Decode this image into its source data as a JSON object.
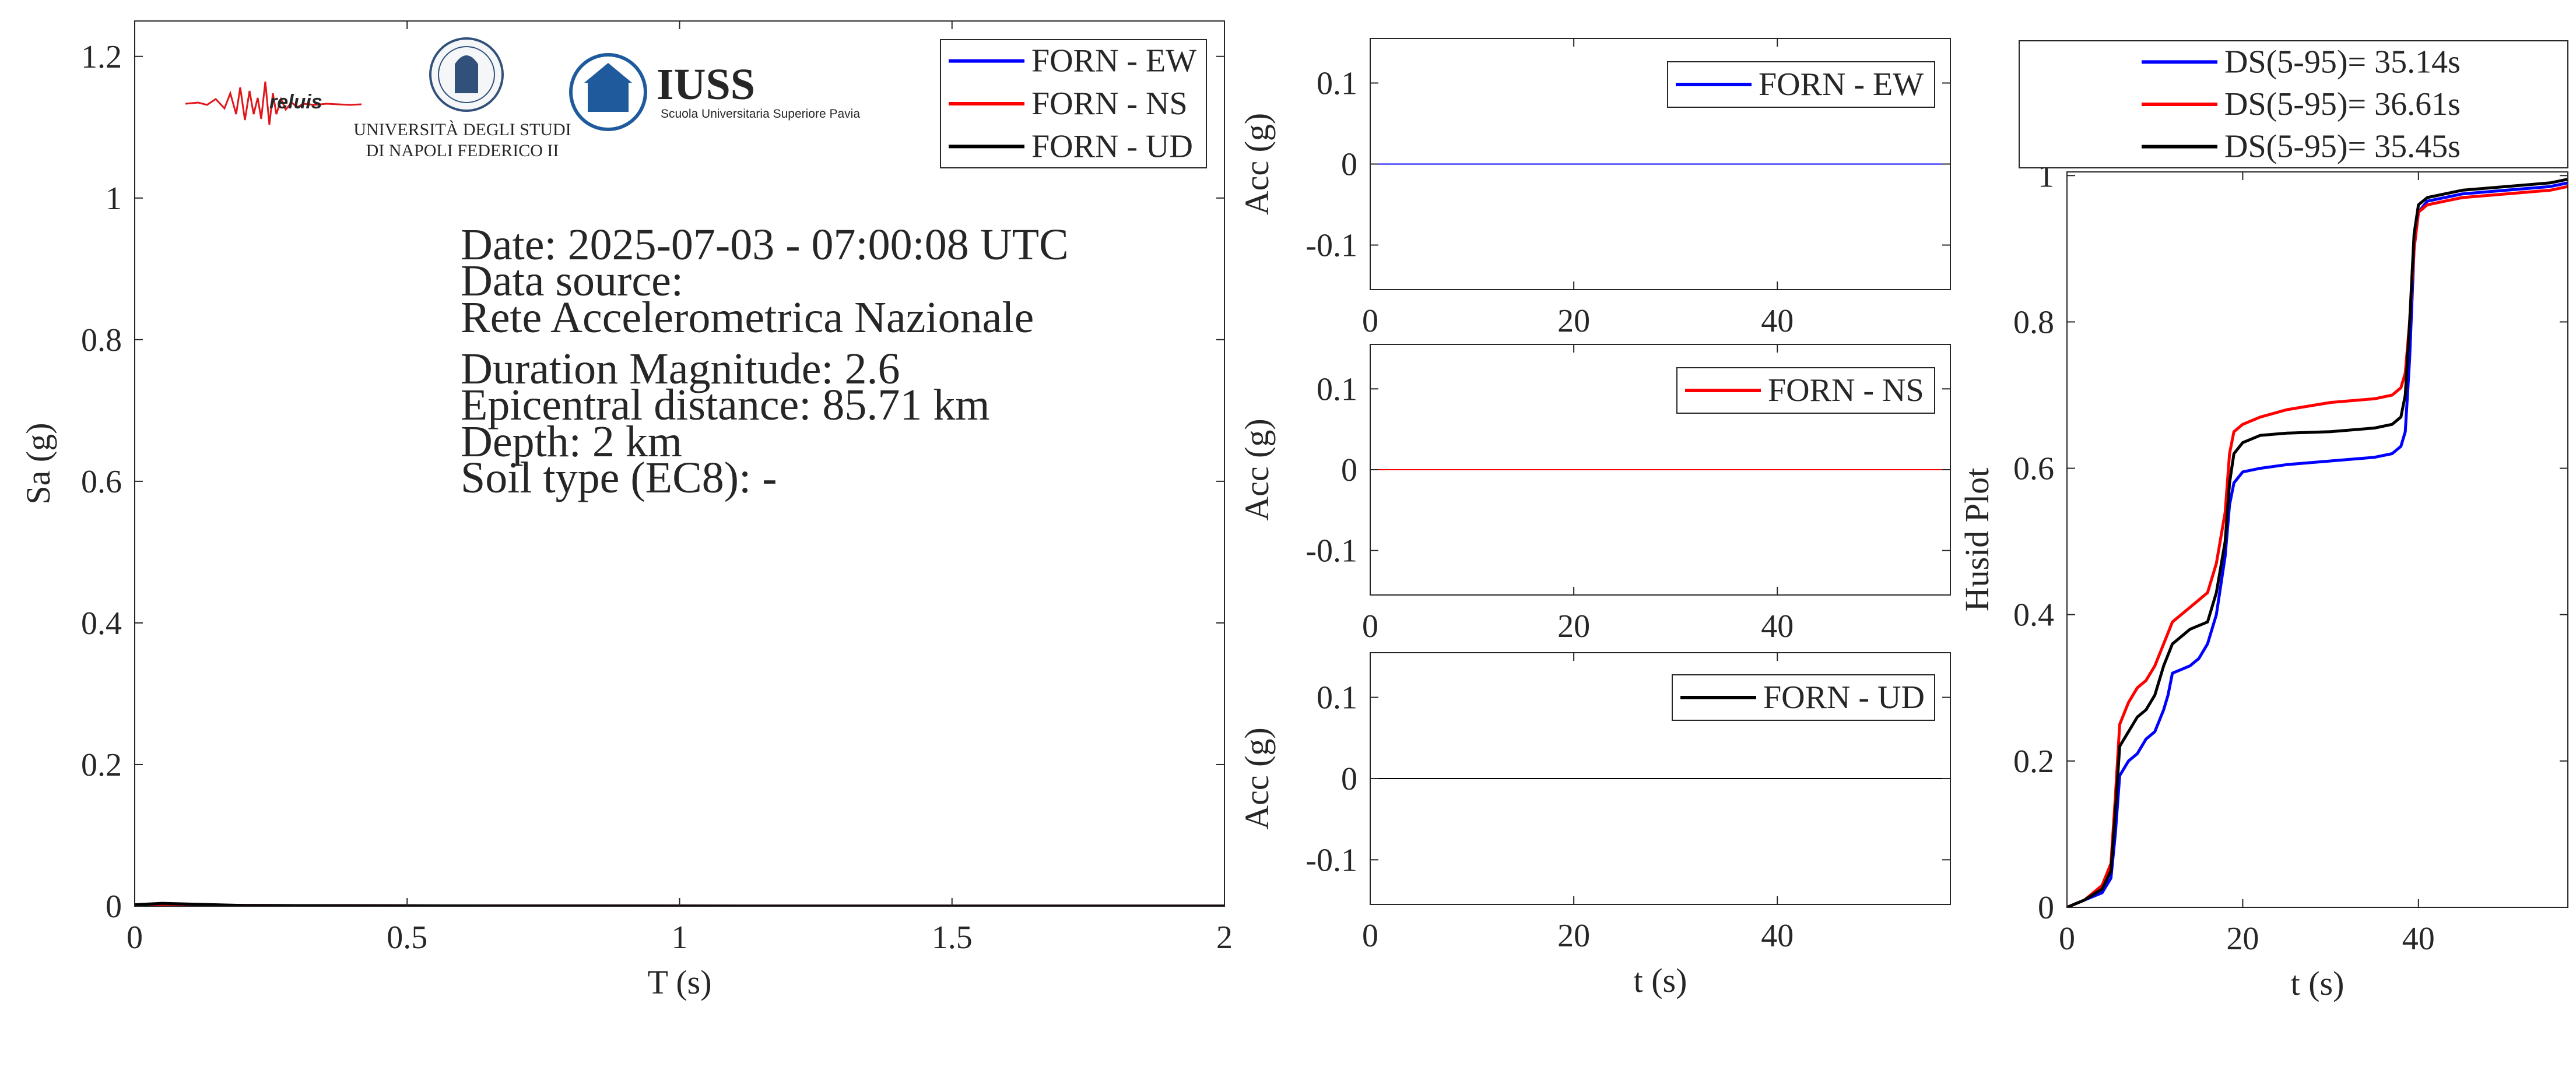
{
  "colors": {
    "ew": "#0000ff",
    "ns": "#ff0000",
    "ud": "#000000",
    "axis": "#262626",
    "logo_blue": "#1f5b9c",
    "logo_red": "#e0161b"
  },
  "logos": {
    "reluis": "reluis",
    "unina_line1": "UNIVERSITÀ DEGLI STUDI",
    "unina_line2": "DI NAPOLI FEDERICO II",
    "iuss_title": "IUSS",
    "iuss_subtitle": "Scuola Universitaria Superiore Pavia"
  },
  "info": {
    "date": "Date: 2025-07-03 - 07:00:08 UTC",
    "source_label": "Data source:",
    "source_name": "Rete Accelerometrica Nazionale",
    "magnitude": "Duration Magnitude: 2.6",
    "distance": "Epicentral distance: 85.71 km",
    "depth": "Depth: 2 km",
    "soil": "Soil type (EC8): -"
  },
  "chart_data": [
    {
      "id": "spectrum",
      "type": "line",
      "xlabel": "T (s)",
      "ylabel": "Sa (g)",
      "xlim": [
        0,
        2
      ],
      "ylim": [
        0,
        1.25
      ],
      "xticks": [
        0,
        0.5,
        1,
        1.5,
        2
      ],
      "yticks": [
        0,
        0.2,
        0.4,
        0.6,
        0.8,
        1,
        1.2
      ],
      "grid": false,
      "legend": "top-right",
      "series": [
        {
          "name": "FORN - EW",
          "color": "#0000ff",
          "x": [
            0,
            0.05,
            0.1,
            0.2,
            0.5,
            1,
            1.5,
            2
          ],
          "y": [
            0.002,
            0.003,
            0.002,
            0.001,
            0.0005,
            0.0002,
            0.0001,
            0.0001
          ]
        },
        {
          "name": "FORN - NS",
          "color": "#ff0000",
          "x": [
            0,
            0.05,
            0.1,
            0.2,
            0.5,
            1,
            1.5,
            2
          ],
          "y": [
            0.002,
            0.003,
            0.002,
            0.001,
            0.0005,
            0.0002,
            0.0001,
            0.0001
          ]
        },
        {
          "name": "FORN - UD",
          "color": "#000000",
          "x": [
            0,
            0.05,
            0.1,
            0.2,
            0.5,
            1,
            1.5,
            2
          ],
          "y": [
            0.002,
            0.004,
            0.003,
            0.001,
            0.0005,
            0.0002,
            0.0001,
            0.0001
          ]
        }
      ]
    },
    {
      "id": "acc_ew",
      "type": "line",
      "xlabel": "",
      "ylabel": "Acc (g)",
      "xlim": [
        0,
        57
      ],
      "ylim": [
        -0.155,
        0.155
      ],
      "xticks": [
        0,
        20,
        40
      ],
      "yticks": [
        -0.1,
        0,
        0.1
      ],
      "ytick_labels": [
        "-0.1",
        "0",
        "0.1"
      ],
      "legend": "top-right",
      "series": [
        {
          "name": "FORN - EW",
          "color": "#0000ff",
          "x": [
            0,
            57
          ],
          "y": [
            0,
            0
          ]
        }
      ]
    },
    {
      "id": "acc_ns",
      "type": "line",
      "xlabel": "",
      "ylabel": "Acc (g)",
      "xlim": [
        0,
        57
      ],
      "ylim": [
        -0.155,
        0.155
      ],
      "xticks": [
        0,
        20,
        40
      ],
      "yticks": [
        -0.1,
        0,
        0.1
      ],
      "ytick_labels": [
        "-0.1",
        "0",
        "0.1"
      ],
      "legend": "top-right",
      "series": [
        {
          "name": "FORN - NS",
          "color": "#ff0000",
          "x": [
            0,
            57
          ],
          "y": [
            0,
            0
          ]
        }
      ]
    },
    {
      "id": "acc_ud",
      "type": "line",
      "xlabel": "t (s)",
      "ylabel": "Acc (g)",
      "xlim": [
        0,
        57
      ],
      "ylim": [
        -0.155,
        0.155
      ],
      "xticks": [
        0,
        20,
        40
      ],
      "yticks": [
        -0.1,
        0,
        0.1
      ],
      "ytick_labels": [
        "-0.1",
        "0",
        "0.1"
      ],
      "legend": "top-right",
      "series": [
        {
          "name": "FORN - UD",
          "color": "#000000",
          "x": [
            0,
            57
          ],
          "y": [
            0,
            0
          ]
        }
      ]
    },
    {
      "id": "husid",
      "type": "line",
      "xlabel": "t (s)",
      "ylabel": "Husid Plot",
      "xlim": [
        0,
        57
      ],
      "ylim": [
        0,
        1.005
      ],
      "xticks": [
        0,
        20,
        40
      ],
      "yticks": [
        0,
        0.2,
        0.4,
        0.6,
        0.8,
        1
      ],
      "legend": "top (outside)",
      "series": [
        {
          "name": "DS(5-95)= 35.14s",
          "color": "#0000ff",
          "x": [
            0,
            2,
            4,
            5,
            5.5,
            6,
            7,
            8,
            9,
            10,
            11,
            11.5,
            12,
            13,
            14,
            15,
            16,
            17,
            18,
            18.5,
            19,
            20,
            22,
            25,
            30,
            35,
            37,
            38,
            38.5,
            39,
            39.5,
            40,
            41,
            43,
            45,
            50,
            55,
            57
          ],
          "y": [
            0,
            0.01,
            0.02,
            0.04,
            0.1,
            0.18,
            0.2,
            0.21,
            0.23,
            0.24,
            0.27,
            0.29,
            0.32,
            0.325,
            0.33,
            0.34,
            0.36,
            0.4,
            0.48,
            0.55,
            0.58,
            0.595,
            0.6,
            0.605,
            0.61,
            0.615,
            0.62,
            0.63,
            0.65,
            0.75,
            0.9,
            0.95,
            0.965,
            0.97,
            0.975,
            0.98,
            0.985,
            0.99
          ]
        },
        {
          "name": "DS(5-95)= 36.61s",
          "color": "#ff0000",
          "x": [
            0,
            2,
            4,
            5,
            5.5,
            6,
            7,
            8,
            9,
            10,
            11,
            12,
            13,
            14,
            15,
            16,
            17,
            18,
            18.5,
            19,
            20,
            22,
            25,
            30,
            35,
            37,
            38,
            38.5,
            39,
            39.5,
            40,
            41,
            43,
            45,
            50,
            55,
            57
          ],
          "y": [
            0,
            0.01,
            0.03,
            0.06,
            0.15,
            0.25,
            0.28,
            0.3,
            0.31,
            0.33,
            0.36,
            0.39,
            0.4,
            0.41,
            0.42,
            0.43,
            0.47,
            0.54,
            0.62,
            0.65,
            0.66,
            0.67,
            0.68,
            0.69,
            0.695,
            0.7,
            0.71,
            0.73,
            0.8,
            0.9,
            0.95,
            0.96,
            0.965,
            0.97,
            0.975,
            0.98,
            0.985
          ]
        },
        {
          "name": "DS(5-95)= 35.45s",
          "color": "#000000",
          "x": [
            0,
            2,
            4,
            5,
            5.5,
            6,
            7,
            8,
            9,
            10,
            11,
            12,
            13,
            14,
            15,
            16,
            17,
            18,
            18.5,
            19,
            20,
            22,
            25,
            30,
            35,
            37,
            38,
            38.5,
            39,
            39.5,
            40,
            41,
            43,
            45,
            50,
            55,
            57
          ],
          "y": [
            0,
            0.01,
            0.025,
            0.05,
            0.13,
            0.22,
            0.24,
            0.26,
            0.27,
            0.29,
            0.33,
            0.36,
            0.37,
            0.38,
            0.385,
            0.39,
            0.43,
            0.5,
            0.58,
            0.62,
            0.635,
            0.645,
            0.648,
            0.65,
            0.655,
            0.66,
            0.67,
            0.7,
            0.8,
            0.92,
            0.96,
            0.97,
            0.975,
            0.98,
            0.985,
            0.99,
            0.995
          ]
        }
      ]
    }
  ]
}
